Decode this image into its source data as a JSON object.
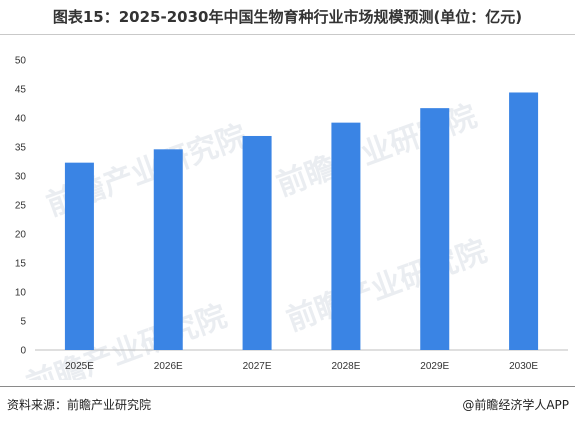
{
  "title": "图表15：2025-2030年中国生物育种行业市场规模预测(单位：亿元)",
  "source_left": "资料来源：前瞻产业研究院",
  "source_right": "@前瞻经济学人APP",
  "watermark": "前瞻产业研究院",
  "colors": {
    "bar": "#3a84e4",
    "axis": "#bfbfbf",
    "text": "#333333"
  },
  "chart_data": {
    "type": "bar",
    "title": "图表15：2025-2030年中国生物育种行业市场规模预测(单位：亿元)",
    "categories": [
      "2025E",
      "2026E",
      "2027E",
      "2028E",
      "2029E",
      "2030E"
    ],
    "values": [
      32.3,
      34.6,
      36.9,
      39.2,
      41.7,
      44.4
    ],
    "ylim": [
      0,
      50
    ],
    "yticks": [
      0,
      5,
      10,
      15,
      20,
      25,
      30,
      35,
      40,
      45,
      50
    ],
    "xlabel": "",
    "ylabel": "",
    "grid": false,
    "legend": "none"
  }
}
